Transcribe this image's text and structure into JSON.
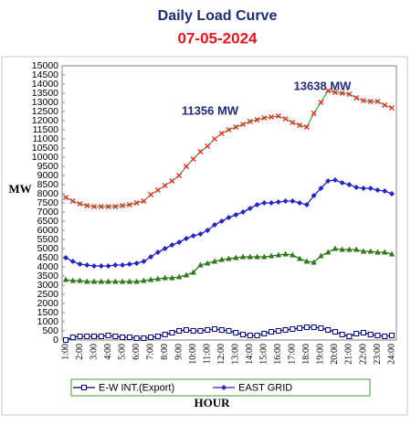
{
  "chart_data": {
    "type": "line",
    "title": "Daily Load Curve",
    "subtitle": "07-05-2024",
    "x_label": "HOUR",
    "y_label": "MW",
    "categories": [
      "1:00",
      null,
      "2:00",
      null,
      "3:00",
      null,
      "4:00",
      null,
      "5:00",
      null,
      "6:00",
      null,
      "7:00",
      null,
      "8:00",
      null,
      "9:00",
      null,
      "10:00",
      null,
      "11:00",
      null,
      "12:00",
      null,
      "13:00",
      null,
      "14:00",
      null,
      "15:00",
      null,
      "16:00",
      null,
      "17:00",
      null,
      "18:00",
      null,
      "19:00",
      null,
      "20:00",
      null,
      "21:00",
      null,
      "22:00",
      null,
      "23:00",
      null,
      "24:00"
    ],
    "ylim": [
      0,
      15000
    ],
    "yticks": [
      0,
      500,
      1000,
      1500,
      2000,
      2500,
      3000,
      3500,
      4000,
      4500,
      5000,
      5500,
      6000,
      6500,
      7000,
      7500,
      8000,
      8500,
      9000,
      9500,
      10000,
      10500,
      11000,
      11500,
      12000,
      12500,
      13000,
      13500,
      14000,
      14500,
      15000
    ],
    "annotations": [
      {
        "text": "11356 MW"
      },
      {
        "text": "13638 MW"
      }
    ],
    "series": [
      {
        "name": "E-W INT.(Export)",
        "color": "#000080",
        "marker": "square",
        "values": [
          0,
          150,
          200,
          200,
          200,
          200,
          250,
          200,
          150,
          150,
          100,
          100,
          150,
          200,
          300,
          400,
          500,
          550,
          500,
          500,
          550,
          600,
          550,
          500,
          400,
          300,
          250,
          250,
          350,
          450,
          500,
          550,
          600,
          650,
          700,
          700,
          650,
          550,
          450,
          300,
          200,
          350,
          400,
          300,
          250,
          200,
          250
        ]
      },
      {
        "name": "EAST GRID",
        "color": "#2424c8",
        "marker": "diamond",
        "values": [
          4500,
          4300,
          4150,
          4100,
          4050,
          4050,
          4050,
          4100,
          4100,
          4150,
          4200,
          4300,
          4550,
          4800,
          5000,
          5200,
          5350,
          5550,
          5700,
          5800,
          6000,
          6300,
          6500,
          6700,
          6850,
          7000,
          7200,
          7400,
          7500,
          7500,
          7550,
          7600,
          7600,
          7500,
          7400,
          7900,
          8300,
          8700,
          8750,
          8600,
          8500,
          8350,
          8300,
          8300,
          8200,
          8150,
          8000
        ]
      },
      {
        "color": "#2f7a1f",
        "marker": "triangle",
        "values": [
          3300,
          3250,
          3250,
          3200,
          3200,
          3200,
          3200,
          3200,
          3200,
          3200,
          3200,
          3250,
          3300,
          3350,
          3400,
          3400,
          3450,
          3550,
          3700,
          4100,
          4200,
          4300,
          4400,
          4450,
          4500,
          4550,
          4550,
          4550,
          4550,
          4600,
          4650,
          4700,
          4650,
          4450,
          4300,
          4250,
          4600,
          4800,
          5000,
          4950,
          4950,
          4950,
          4850,
          4850,
          4800,
          4800,
          4700
        ]
      },
      {
        "color": "#3cb043",
        "marker": "cross",
        "marker_color": "#ff2020",
        "values": [
          7800,
          7600,
          7450,
          7350,
          7300,
          7300,
          7300,
          7300,
          7350,
          7400,
          7500,
          7600,
          7950,
          8200,
          8450,
          8700,
          9000,
          9500,
          9900,
          10300,
          10600,
          11000,
          11300,
          11500,
          11650,
          11800,
          11950,
          12050,
          12150,
          12200,
          12250,
          12100,
          11900,
          11750,
          11650,
          12400,
          13000,
          13638,
          13550,
          13500,
          13450,
          13250,
          13100,
          13050,
          13050,
          12850,
          12700
        ]
      }
    ]
  }
}
